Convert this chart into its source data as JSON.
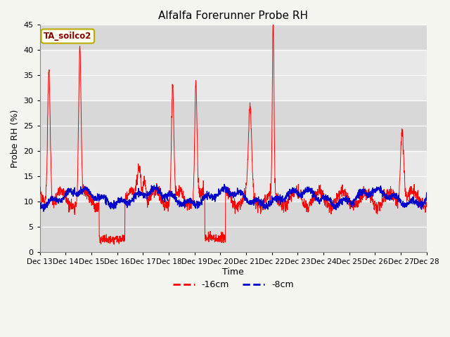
{
  "title": "Alfalfa Forerunner Probe RH",
  "xlabel": "Time",
  "ylabel": "Probe RH (%)",
  "ylim": [
    0,
    45
  ],
  "yticks": [
    0,
    5,
    10,
    15,
    20,
    25,
    30,
    35,
    40,
    45
  ],
  "fig_bg_color": "#f5f5f0",
  "plot_bg_color": "#e8e8e8",
  "grid_color": "#ffffff",
  "label_box_color": "#fffff0",
  "label_box_edge_color": "#bbaa00",
  "label_box_text": "TA_soilco2",
  "label_text_color": "#880000",
  "legend_items": [
    "-16cm",
    "-8cm"
  ],
  "legend_colors": [
    "#ff0000",
    "#0000cc"
  ],
  "x_tick_labels": [
    "Dec 13",
    "Dec 14",
    "Dec 15",
    "Dec 16",
    "Dec 17",
    "Dec 18",
    "Dec 19",
    "Dec 20",
    "Dec 21",
    "Dec 22",
    "Dec 23",
    "Dec 24",
    "Dec 25",
    "Dec 26",
    "Dec 27",
    "Dec 28"
  ],
  "num_points": 2000,
  "date_start": 13,
  "date_end": 28
}
